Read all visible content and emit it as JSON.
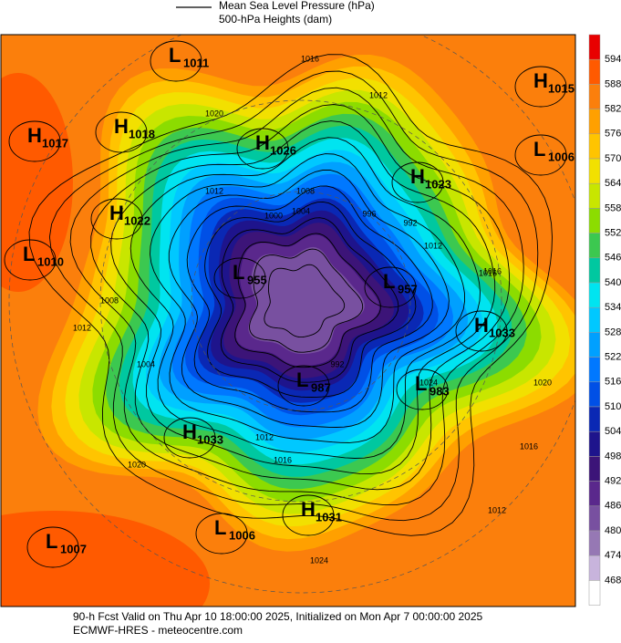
{
  "legend": {
    "line_label": "Mean Sea Level Pressure (hPa)",
    "fill_label": "500-hPa Heights (dam)"
  },
  "colorbar": {
    "levels": [
      594,
      588,
      582,
      576,
      570,
      564,
      558,
      552,
      546,
      540,
      534,
      528,
      522,
      516,
      510,
      504,
      498,
      492,
      486,
      480,
      474,
      468
    ],
    "colors": [
      "#e80000",
      "#ff5a00",
      "#fb7f0c",
      "#ffa000",
      "#ffc400",
      "#f2e000",
      "#c8e600",
      "#8cdc00",
      "#3cc850",
      "#00c8a0",
      "#00e4f0",
      "#00c8ff",
      "#00a0ff",
      "#0078ff",
      "#0050e6",
      "#0a28b4",
      "#1e148c",
      "#3c1478",
      "#5a288c",
      "#7850a0",
      "#9678b4",
      "#c8b4dc",
      "#ffffff"
    ]
  },
  "centers": [
    {
      "letter": "L",
      "value": 1011
    },
    {
      "letter": "H",
      "value": 1015
    },
    {
      "letter": "H",
      "value": 1018
    },
    {
      "letter": "H",
      "value": 1017
    },
    {
      "letter": "H",
      "value": 1026
    },
    {
      "letter": "L",
      "value": 1006
    },
    {
      "letter": "H",
      "value": 1023
    },
    {
      "letter": "H",
      "value": 1022
    },
    {
      "letter": "L",
      "value": 1010
    },
    {
      "letter": "L",
      "value": 955
    },
    {
      "letter": "L",
      "value": 957
    },
    {
      "letter": "H",
      "value": 1033
    },
    {
      "letter": "L",
      "value": 987
    },
    {
      "letter": "L",
      "value": 983
    },
    {
      "letter": "H",
      "value": 1033
    },
    {
      "letter": "H",
      "value": 1031
    },
    {
      "letter": "L",
      "value": 1006
    },
    {
      "letter": "L",
      "value": 1007
    }
  ],
  "contour_labels": [
    1016,
    1012,
    1020,
    1012,
    1008,
    1004,
    1000,
    996,
    992,
    1012,
    1016,
    1024,
    1016,
    1012,
    1008,
    1004,
    992,
    1012,
    1016,
    1020,
    1024,
    1020,
    1016,
    1012
  ],
  "footer": {
    "line1": "90-h Fcst Valid on Thu Apr 10 18:00:00 2025, Initialized on Mon Apr  7 00:00:00 2025",
    "line2": "ECMWF-HRES  - meteocentre.com"
  }
}
